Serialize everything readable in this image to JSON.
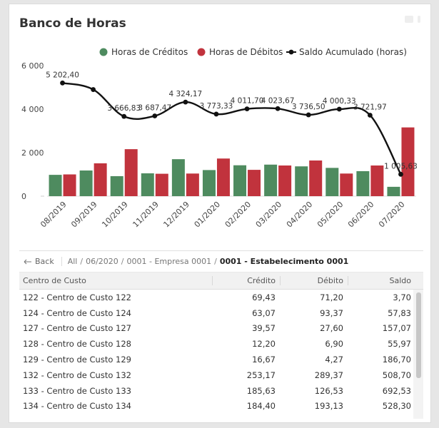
{
  "title": "Banco de Horas",
  "colors": {
    "credit": "#4e8b5f",
    "debit": "#c1333d",
    "line": "#111111"
  },
  "chart_data": {
    "type": "bar",
    "categories": [
      "08/2019",
      "09/2019",
      "10/2019",
      "11/2019",
      "12/2019",
      "01/2020",
      "02/2020",
      "03/2020",
      "04/2020",
      "05/2020",
      "06/2020",
      "07/2020"
    ],
    "ylim": [
      0,
      6000
    ],
    "yticks": [
      0,
      2000,
      4000,
      6000
    ],
    "ytick_labels": [
      "0",
      "2 000",
      "4 000",
      "6 000"
    ],
    "legend": [
      "Horas de Créditos",
      "Horas de Débitos",
      "Saldo Acumulado (horas)"
    ],
    "series": [
      {
        "name": "Horas de Créditos",
        "values": [
          980,
          1180,
          920,
          1050,
          1700,
          1200,
          1420,
          1450,
          1370,
          1300,
          1150,
          430
        ]
      },
      {
        "name": "Horas de Débitos",
        "values": [
          1000,
          1510,
          2160,
          1030,
          1040,
          1730,
          1210,
          1410,
          1640,
          1040,
          1410,
          3160
        ]
      },
      {
        "name": "Saldo Acumulado (horas)",
        "values": [
          5202.4,
          4900,
          3666.83,
          3687.47,
          4324.17,
          3773.33,
          4011.7,
          4023.67,
          3736.5,
          4000.33,
          3721.97,
          1005.63
        ]
      }
    ],
    "line_labels": [
      "5 202,40",
      "",
      "3 666,83",
      "3 687,47",
      "4 324,17",
      "3 773,33",
      "4 011,70",
      "4 023,67",
      "3 736,50",
      "4 000,33",
      "3 721,97",
      "1 005,63"
    ]
  },
  "breadcrumb": {
    "back_label": "Back",
    "items": [
      "All",
      "06/2020",
      "0001 - Empresa 0001"
    ],
    "current": "0001 - Estabelecimento 0001"
  },
  "table": {
    "headers": [
      "Centro de Custo",
      "Crédito",
      "Débito",
      "Saldo"
    ],
    "rows": [
      [
        "122 - Centro de Custo 122",
        "69,43",
        "71,20",
        "3,70"
      ],
      [
        "124 - Centro de Custo 124",
        "63,07",
        "93,37",
        "57,83"
      ],
      [
        "127 - Centro de Custo 127",
        "39,57",
        "27,60",
        "157,07"
      ],
      [
        "128 - Centro de Custo 128",
        "12,20",
        "6,90",
        "55,97"
      ],
      [
        "129 - Centro de Custo 129",
        "16,67",
        "4,27",
        "186,70"
      ],
      [
        "132 - Centro de Custo 132",
        "253,17",
        "289,37",
        "508,70"
      ],
      [
        "133 - Centro de Custo 133",
        "185,63",
        "126,53",
        "692,53"
      ],
      [
        "134 - Centro de Custo 134",
        "184,40",
        "193,13",
        "528,30"
      ]
    ]
  }
}
